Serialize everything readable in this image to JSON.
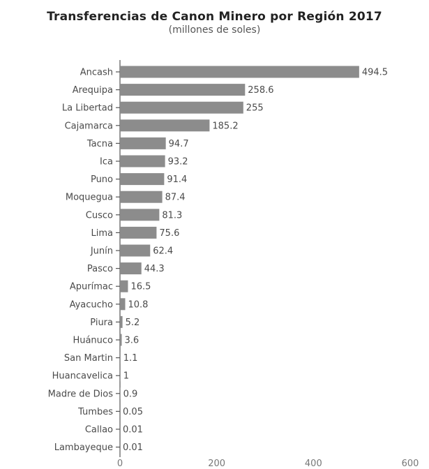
{
  "chart_data": {
    "type": "bar",
    "orientation": "horizontal",
    "title": "Transferencias de Canon Minero por Región 2017",
    "subtitle": "(millones de soles)",
    "categories": [
      "Ancash",
      "Arequipa",
      "La Libertad",
      "Cajamarca",
      "Tacna",
      "Ica",
      "Puno",
      "Moquegua",
      "Cusco",
      "Lima",
      "Junín",
      "Pasco",
      "Apurímac",
      "Ayacucho",
      "Piura",
      "Huánuco",
      "San Martin",
      "Huancavelica",
      "Madre de Dios",
      "Tumbes",
      "Callao",
      "Lambayeque"
    ],
    "values": [
      494.5,
      258.6,
      255,
      185.2,
      94.7,
      93.2,
      91.4,
      87.4,
      81.3,
      75.6,
      62.4,
      44.3,
      16.5,
      10.8,
      5.2,
      3.6,
      1.1,
      1,
      0.9,
      0.05,
      0.01,
      0.01
    ],
    "value_labels": [
      "494.5",
      "258.6",
      "255",
      "185.2",
      "94.7",
      "93.2",
      "91.4",
      "87.4",
      "81.3",
      "75.6",
      "62.4",
      "44.3",
      "16.5",
      "10.8",
      "5.2",
      "3.6",
      "1.1",
      "1",
      "0.9",
      "0.05",
      "0.01",
      "0.01"
    ],
    "xlim": [
      0,
      600
    ],
    "xticks": [
      "0",
      "200",
      "400",
      "600"
    ],
    "grid": false,
    "bar_color": "#8c8c8c",
    "axis_color": "#555555"
  }
}
